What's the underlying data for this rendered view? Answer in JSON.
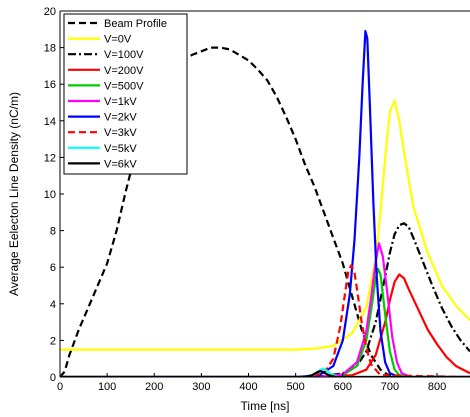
{
  "chart_data": {
    "type": "line",
    "title": "",
    "xlabel": "Time [ns]",
    "ylabel": "Average Eelecton Line Density (nC/m)",
    "xlim": [
      0,
      870
    ],
    "ylim": [
      0,
      20
    ],
    "xticks": [
      0,
      100,
      200,
      300,
      400,
      500,
      600,
      700,
      800
    ],
    "yticks": [
      0,
      2,
      4,
      6,
      8,
      10,
      12,
      14,
      16,
      18,
      20
    ],
    "grid": false,
    "legend_position": "top-left",
    "series": [
      {
        "name": "Beam Profile",
        "color": "#000000",
        "dash": "dashed",
        "width": 2.2,
        "x": [
          0,
          10,
          20,
          40,
          60,
          80,
          100,
          120,
          140,
          160,
          180,
          200,
          220,
          240,
          260,
          280,
          300,
          320,
          340,
          360,
          380,
          400,
          420,
          440,
          460,
          480,
          500,
          520,
          540,
          560,
          580,
          600,
          620,
          640,
          660,
          680,
          700,
          720
        ],
        "y": [
          0,
          0.3,
          1.2,
          2.6,
          3.8,
          5.0,
          6.2,
          8.0,
          10.2,
          12.2,
          13.8,
          15.0,
          16.0,
          16.8,
          17.3,
          17.6,
          17.8,
          18.0,
          18.0,
          17.9,
          17.6,
          17.3,
          16.8,
          16.2,
          15.3,
          14.2,
          13.0,
          11.6,
          10.4,
          9.0,
          7.6,
          6.2,
          4.4,
          2.6,
          1.2,
          0.4,
          0.05,
          0
        ]
      },
      {
        "name": "V=0V",
        "color": "#ffff00",
        "dash": "solid",
        "width": 2.2,
        "x": [
          0,
          100,
          200,
          300,
          400,
          500,
          540,
          580,
          620,
          650,
          670,
          680,
          690,
          700,
          710,
          720,
          730,
          750,
          780,
          810,
          840,
          870
        ],
        "y": [
          1.5,
          1.5,
          1.5,
          1.5,
          1.5,
          1.5,
          1.55,
          1.7,
          2.4,
          3.8,
          6.5,
          9.0,
          12.0,
          14.5,
          15.1,
          14.0,
          12.3,
          9.3,
          6.8,
          5.0,
          3.9,
          3.1
        ]
      },
      {
        "name": "V=100V",
        "color": "#000000",
        "dash": "dashdot",
        "width": 2.2,
        "x": [
          0,
          500,
          560,
          600,
          630,
          650,
          670,
          690,
          700,
          710,
          720,
          730,
          740,
          750,
          770,
          790,
          810,
          830,
          850,
          870
        ],
        "y": [
          0,
          0,
          0.05,
          0.2,
          0.6,
          1.4,
          3.0,
          5.5,
          6.8,
          7.8,
          8.3,
          8.4,
          8.2,
          7.6,
          6.3,
          5.0,
          3.8,
          2.8,
          2.0,
          1.4
        ]
      },
      {
        "name": "V=200V",
        "color": "#ff0000",
        "dash": "solid",
        "width": 2.2,
        "x": [
          0,
          550,
          620,
          650,
          670,
          690,
          700,
          710,
          720,
          730,
          740,
          760,
          780,
          800,
          820,
          840,
          870
        ],
        "y": [
          0,
          0,
          0.1,
          0.4,
          1.2,
          3.0,
          4.2,
          5.2,
          5.6,
          5.4,
          4.8,
          3.7,
          2.6,
          1.8,
          1.1,
          0.6,
          0.2
        ]
      },
      {
        "name": "V=500V",
        "color": "#00cc00",
        "dash": "solid",
        "width": 2.2,
        "x": [
          0,
          550,
          600,
          630,
          650,
          660,
          670,
          675,
          680,
          690,
          700,
          710,
          720,
          740,
          870
        ],
        "y": [
          0,
          0,
          0.1,
          0.6,
          2.0,
          3.6,
          5.4,
          5.9,
          5.6,
          3.4,
          1.4,
          0.4,
          0.1,
          0,
          0
        ]
      },
      {
        "name": "V=1kV",
        "color": "#ff00ff",
        "dash": "solid",
        "width": 2.2,
        "x": [
          0,
          550,
          600,
          630,
          650,
          660,
          670,
          677,
          685,
          695,
          705,
          715,
          725,
          745,
          870
        ],
        "y": [
          0,
          0,
          0.15,
          0.8,
          2.5,
          4.3,
          6.3,
          7.3,
          6.6,
          4.5,
          2.2,
          0.8,
          0.2,
          0,
          0
        ]
      },
      {
        "name": "V=2kV",
        "color": "#0000ff",
        "dash": "solid",
        "width": 2.2,
        "x": [
          0,
          500,
          550,
          580,
          600,
          615,
          625,
          635,
          642,
          648,
          652,
          658,
          665,
          672,
          680,
          690,
          700,
          720,
          870
        ],
        "y": [
          0,
          0,
          0.1,
          0.6,
          2.0,
          4.5,
          7.5,
          12.0,
          16.0,
          18.9,
          18.5,
          14.5,
          9.5,
          5.5,
          2.5,
          0.8,
          0.2,
          0,
          0
        ]
      },
      {
        "name": "V=3kV",
        "color": "#ff0000",
        "dash": "dashed",
        "width": 2.2,
        "x": [
          0,
          520,
          560,
          580,
          595,
          605,
          612,
          618,
          625,
          632,
          640,
          650,
          660,
          680,
          870
        ],
        "y": [
          0,
          0,
          0.2,
          1.0,
          2.8,
          4.6,
          5.8,
          6.1,
          5.7,
          4.5,
          3.0,
          1.6,
          0.7,
          0.1,
          0
        ]
      },
      {
        "name": "V=5kV",
        "color": "#00ffff",
        "dash": "solid",
        "width": 2.2,
        "x": [
          0,
          520,
          540,
          550,
          558,
          566,
          575,
          590,
          870
        ],
        "y": [
          0,
          0,
          0.15,
          0.35,
          0.45,
          0.35,
          0.15,
          0,
          0
        ]
      },
      {
        "name": "V=6kV",
        "color": "#000000",
        "dash": "solid",
        "width": 2.2,
        "x": [
          0,
          520,
          535,
          545,
          553,
          560,
          570,
          585,
          870
        ],
        "y": [
          0,
          0,
          0.1,
          0.25,
          0.32,
          0.25,
          0.1,
          0,
          0
        ]
      }
    ]
  }
}
